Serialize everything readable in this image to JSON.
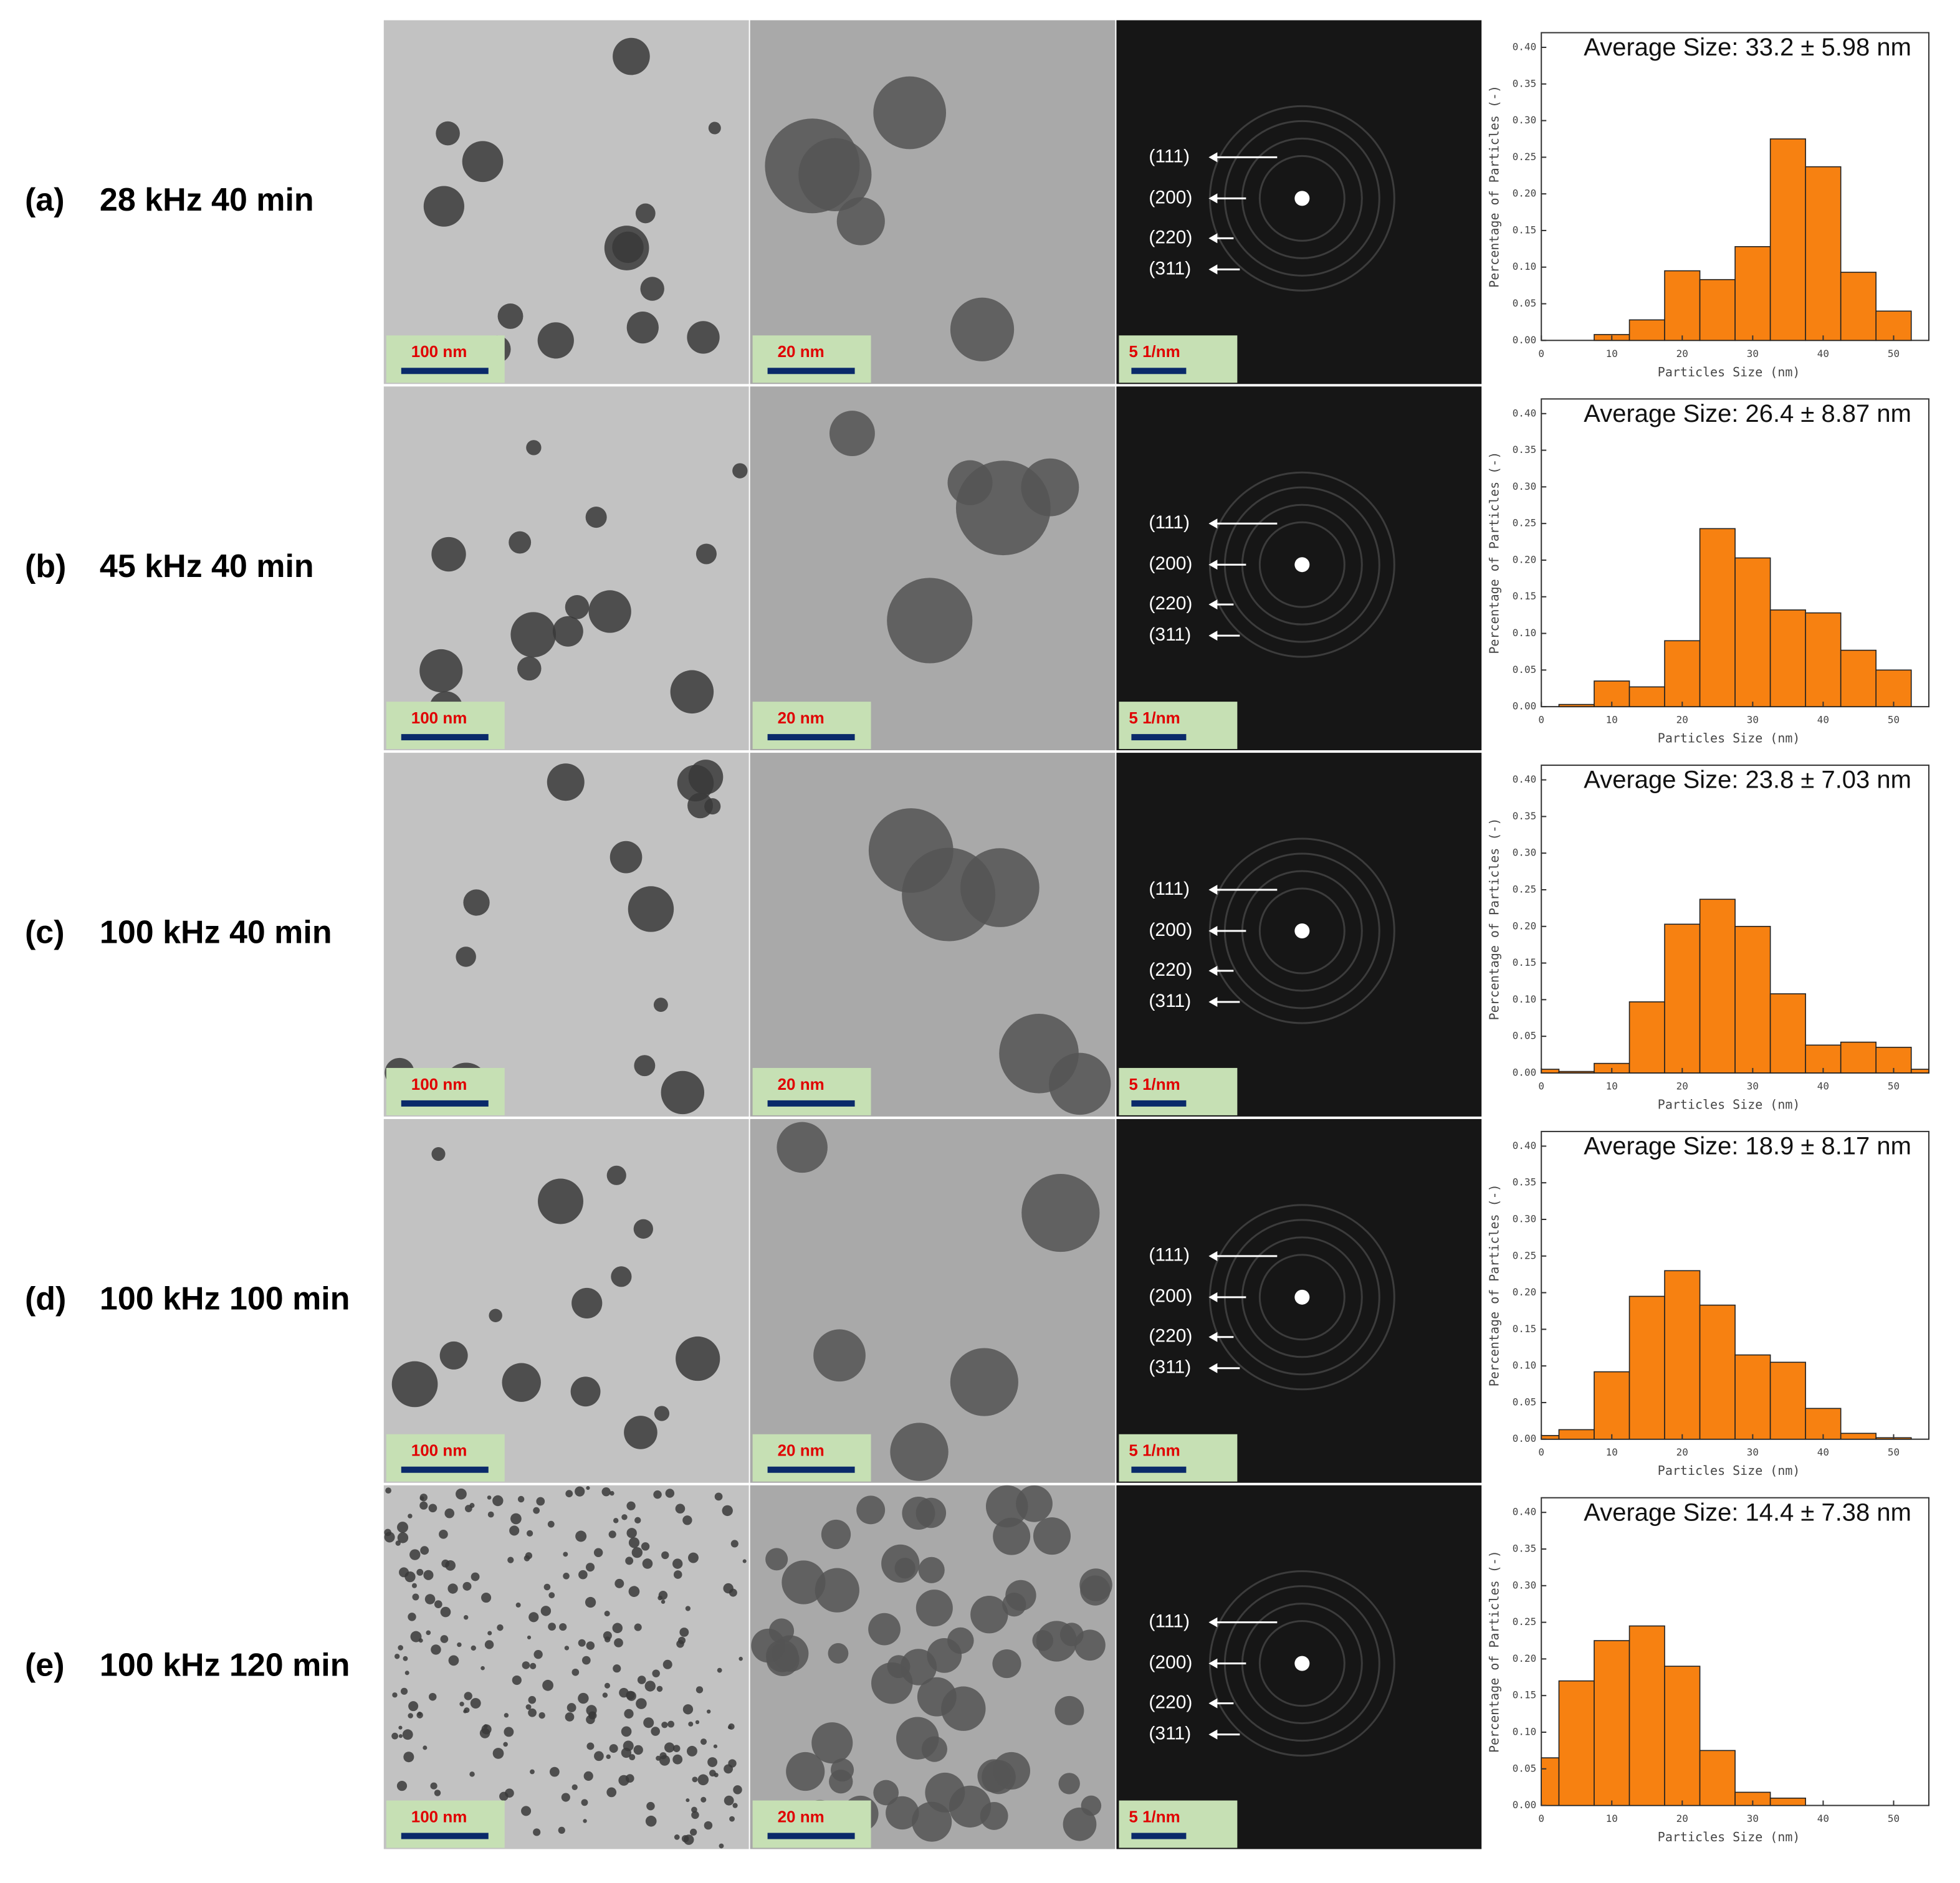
{
  "panels": [
    {
      "tag": "(a)",
      "condition": "28 kHz 40 min",
      "scale_bars": [
        "100 nm",
        "20 nm",
        "5 1/nm"
      ],
      "planes": [
        "(111)",
        "(200)",
        "(220)",
        "(311)"
      ]
    },
    {
      "tag": "(b)",
      "condition": "45 kHz 40 min",
      "scale_bars": [
        "100 nm",
        "20 nm",
        "5 1/nm"
      ],
      "planes": [
        "(111)",
        "(200)",
        "(220)",
        "(311)"
      ]
    },
    {
      "tag": "(c)",
      "condition": "100 kHz 40 min",
      "scale_bars": [
        "100 nm",
        "20 nm",
        "5 1/nm"
      ],
      "planes": [
        "(111)",
        "(200)",
        "(220)",
        "(311)"
      ]
    },
    {
      "tag": "(d)",
      "condition": "100 kHz 100 min",
      "scale_bars": [
        "100 nm",
        "20 nm",
        "5 1/nm"
      ],
      "planes": [
        "(111)",
        "(200)",
        "(220)",
        "(311)"
      ]
    },
    {
      "tag": "(e)",
      "condition": "100 kHz 120 min",
      "scale_bars": [
        "100 nm",
        "20 nm",
        "5 1/nm"
      ],
      "planes": [
        "(111)",
        "(200)",
        "(220)",
        "(311)"
      ]
    }
  ],
  "chart_data": [
    {
      "type": "histogram",
      "title": "Average Size: 33.2 ± 5.98 nm",
      "xlabel": "Particles Size (nm)",
      "ylabel": "Percentage of Particles (-)",
      "color": "#f78111",
      "bins": [
        0,
        2.5,
        7.5,
        12.5,
        17.5,
        22.5,
        27.5,
        32.5,
        37.5,
        42.5,
        47.5,
        52.5,
        55
      ],
      "values": [
        0,
        0,
        0.008,
        0.028,
        0.095,
        0.083,
        0.128,
        0.275,
        0.237,
        0.093,
        0.04,
        0
      ],
      "xlim": [
        0,
        55
      ],
      "ylim": [
        0,
        0.42
      ],
      "xticks": [
        0,
        10,
        20,
        30,
        40,
        50
      ],
      "yticks": [
        {
          "value": 0,
          "label": "0.00"
        },
        {
          "value": 0.05,
          "label": "0.05"
        },
        {
          "value": 0.1,
          "label": "0.10"
        },
        {
          "value": 0.15,
          "label": "0.15"
        },
        {
          "value": 0.2,
          "label": "0.20"
        },
        {
          "value": 0.25,
          "label": "0.25"
        },
        {
          "value": 0.3,
          "label": "0.30"
        },
        {
          "value": 0.35,
          "label": "0.35"
        },
        {
          "value": 0.4,
          "label": "0.40"
        }
      ]
    },
    {
      "type": "histogram",
      "title": "Average Size: 26.4 ± 8.87 nm",
      "xlabel": "Particles Size (nm)",
      "ylabel": "Percentage of Particles (-)",
      "color": "#f78111",
      "bins": [
        0,
        2.5,
        7.5,
        12.5,
        17.5,
        22.5,
        27.5,
        32.5,
        37.5,
        42.5,
        47.5,
        52.5,
        55
      ],
      "values": [
        0,
        0.003,
        0.035,
        0.027,
        0.09,
        0.243,
        0.203,
        0.132,
        0.128,
        0.077,
        0.05,
        0
      ],
      "xlim": [
        0,
        55
      ],
      "ylim": [
        0,
        0.42
      ],
      "xticks": [
        0,
        10,
        20,
        30,
        40,
        50
      ],
      "yticks": [
        {
          "value": 0,
          "label": "0.00"
        },
        {
          "value": 0.05,
          "label": "0.05"
        },
        {
          "value": 0.1,
          "label": "0.10"
        },
        {
          "value": 0.15,
          "label": "0.15"
        },
        {
          "value": 0.2,
          "label": "0.20"
        },
        {
          "value": 0.25,
          "label": "0.25"
        },
        {
          "value": 0.3,
          "label": "0.30"
        },
        {
          "value": 0.35,
          "label": "0.35"
        },
        {
          "value": 0.4,
          "label": "0.40"
        }
      ]
    },
    {
      "type": "histogram",
      "title": "Average Size: 23.8 ± 7.03 nm",
      "xlabel": "Particles Size (nm)",
      "ylabel": "Percentage of Particles (-)",
      "color": "#f78111",
      "bins": [
        0,
        2.5,
        7.5,
        12.5,
        17.5,
        22.5,
        27.5,
        32.5,
        37.5,
        42.5,
        47.5,
        52.5,
        55
      ],
      "values": [
        0.005,
        0.002,
        0.013,
        0.097,
        0.203,
        0.237,
        0.2,
        0.108,
        0.038,
        0.042,
        0.035,
        0.005
      ],
      "xlim": [
        0,
        55
      ],
      "ylim": [
        0,
        0.42
      ],
      "xticks": [
        0,
        10,
        20,
        30,
        40,
        50
      ],
      "yticks": [
        {
          "value": 0,
          "label": "0.00"
        },
        {
          "value": 0.05,
          "label": "0.05"
        },
        {
          "value": 0.1,
          "label": "0.10"
        },
        {
          "value": 0.15,
          "label": "0.15"
        },
        {
          "value": 0.2,
          "label": "0.20"
        },
        {
          "value": 0.25,
          "label": "0.25"
        },
        {
          "value": 0.3,
          "label": "0.30"
        },
        {
          "value": 0.35,
          "label": "0.35"
        },
        {
          "value": 0.4,
          "label": "0.40"
        }
      ]
    },
    {
      "type": "histogram",
      "title": "Average Size: 18.9 ± 8.17 nm",
      "xlabel": "Particles Size (nm)",
      "ylabel": "Percentage of Particles (-)",
      "color": "#f78111",
      "bins": [
        0,
        2.5,
        7.5,
        12.5,
        17.5,
        22.5,
        27.5,
        32.5,
        37.5,
        42.5,
        47.5,
        52.5,
        55
      ],
      "values": [
        0.005,
        0.013,
        0.092,
        0.195,
        0.23,
        0.183,
        0.115,
        0.105,
        0.042,
        0.008,
        0.002,
        0
      ],
      "xlim": [
        0,
        55
      ],
      "ylim": [
        0,
        0.42
      ],
      "xticks": [
        0,
        10,
        20,
        30,
        40,
        50
      ],
      "yticks": [
        {
          "value": 0,
          "label": "0.00"
        },
        {
          "value": 0.05,
          "label": "0.05"
        },
        {
          "value": 0.1,
          "label": "0.10"
        },
        {
          "value": 0.15,
          "label": "0.15"
        },
        {
          "value": 0.2,
          "label": "0.20"
        },
        {
          "value": 0.25,
          "label": "0.25"
        },
        {
          "value": 0.3,
          "label": "0.30"
        },
        {
          "value": 0.35,
          "label": "0.35"
        },
        {
          "value": 0.4,
          "label": "0.40"
        }
      ]
    },
    {
      "type": "histogram",
      "title": "Average Size: 14.4 ± 7.38 nm",
      "xlabel": "Particles Size (nm)",
      "ylabel": "Percentage of Particles (-)",
      "color": "#f78111",
      "bins": [
        0,
        2.5,
        7.5,
        12.5,
        17.5,
        22.5,
        27.5,
        32.5,
        37.5,
        42.5,
        47.5,
        52.5,
        55
      ],
      "values": [
        0.065,
        0.17,
        0.225,
        0.245,
        0.19,
        0.075,
        0.018,
        0.01,
        0,
        0,
        0,
        0
      ],
      "xlim": [
        0,
        55
      ],
      "ylim": [
        0,
        0.42
      ],
      "xticks": [
        0,
        10,
        20,
        30,
        40,
        50
      ],
      "yticks": [
        {
          "value": 0,
          "label": "0.00"
        },
        {
          "value": 0.05,
          "label": "0.05"
        },
        {
          "value": 0.1,
          "label": "0.10"
        },
        {
          "value": 0.15,
          "label": "0.15"
        },
        {
          "value": 0.2,
          "label": "0.20"
        },
        {
          "value": 0.25,
          "label": "0.25"
        },
        {
          "value": 0.3,
          "label": "0.30"
        },
        {
          "value": 0.35,
          "label": "0.35"
        },
        {
          "value": 0.4,
          "label": "0.40"
        }
      ]
    }
  ]
}
